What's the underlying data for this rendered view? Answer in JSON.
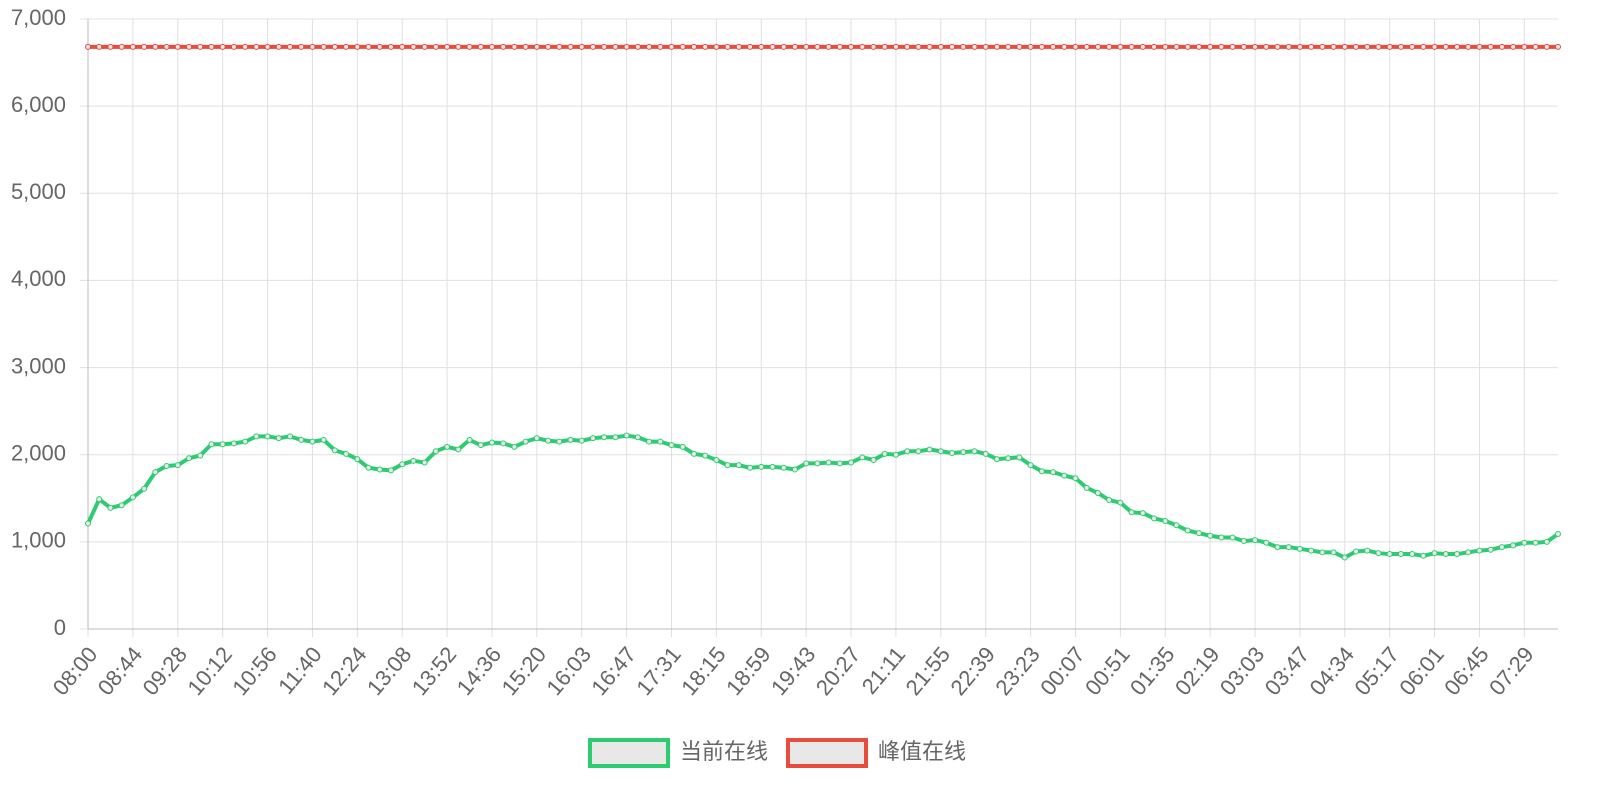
{
  "chart_data": {
    "type": "line",
    "categories": [
      "08:00",
      null,
      null,
      null,
      "08:44",
      null,
      null,
      null,
      "09:28",
      null,
      null,
      null,
      "10:12",
      null,
      null,
      null,
      "10:56",
      null,
      null,
      null,
      "11:40",
      null,
      null,
      null,
      "12:24",
      null,
      null,
      null,
      "13:08",
      null,
      null,
      null,
      "13:52",
      null,
      null,
      null,
      "14:36",
      null,
      null,
      null,
      "15:20",
      null,
      null,
      null,
      "16:03",
      null,
      null,
      null,
      "16:47",
      null,
      null,
      null,
      "17:31",
      null,
      null,
      null,
      "18:15",
      null,
      null,
      null,
      "18:59",
      null,
      null,
      null,
      "19:43",
      null,
      null,
      null,
      "20:27",
      null,
      null,
      null,
      "21:11",
      null,
      null,
      null,
      "21:55",
      null,
      null,
      null,
      "22:39",
      null,
      null,
      null,
      "23:23",
      null,
      null,
      null,
      "00:07",
      null,
      null,
      null,
      "00:51",
      null,
      null,
      null,
      "01:35",
      null,
      null,
      null,
      "02:19",
      null,
      null,
      null,
      "03:03",
      null,
      null,
      null,
      "03:47",
      null,
      null,
      null,
      "04:34",
      null,
      null,
      null,
      "05:17",
      null,
      null,
      null,
      "06:01",
      null,
      null,
      null,
      "06:45",
      null,
      null,
      null,
      "07:29",
      null,
      null,
      null
    ],
    "series": [
      {
        "name": "当前在线",
        "color": "#2ecc71",
        "values": [
          1210,
          1490,
          1390,
          1420,
          1510,
          1610,
          1800,
          1870,
          1880,
          1960,
          1990,
          2120,
          2120,
          2130,
          2150,
          2210,
          2210,
          2190,
          2210,
          2170,
          2150,
          2170,
          2050,
          2010,
          1950,
          1850,
          1830,
          1820,
          1890,
          1930,
          1910,
          2040,
          2090,
          2060,
          2170,
          2110,
          2140,
          2130,
          2090,
          2150,
          2190,
          2160,
          2150,
          2170,
          2160,
          2190,
          2200,
          2200,
          2220,
          2200,
          2150,
          2150,
          2110,
          2090,
          2010,
          1990,
          1940,
          1880,
          1880,
          1850,
          1860,
          1860,
          1850,
          1830,
          1900,
          1900,
          1910,
          1900,
          1910,
          1970,
          1940,
          2010,
          2000,
          2040,
          2040,
          2060,
          2040,
          2020,
          2030,
          2040,
          2010,
          1950,
          1960,
          1970,
          1880,
          1810,
          1800,
          1760,
          1730,
          1620,
          1560,
          1480,
          1450,
          1340,
          1330,
          1270,
          1240,
          1190,
          1130,
          1100,
          1070,
          1050,
          1050,
          1010,
          1020,
          990,
          940,
          940,
          920,
          900,
          880,
          880,
          820,
          890,
          900,
          870,
          860,
          860,
          860,
          840,
          870,
          860,
          860,
          880,
          900,
          910,
          940,
          960,
          990,
          990,
          1000,
          1090
        ]
      },
      {
        "name": "峰值在线",
        "color": "#e74c3c",
        "values": [
          6680,
          6680,
          6680,
          6680,
          6680,
          6680,
          6680,
          6680,
          6680,
          6680,
          6680,
          6680,
          6680,
          6680,
          6680,
          6680,
          6680,
          6680,
          6680,
          6680,
          6680,
          6680,
          6680,
          6680,
          6680,
          6680,
          6680,
          6680,
          6680,
          6680,
          6680,
          6680,
          6680,
          6680,
          6680,
          6680,
          6680,
          6680,
          6680,
          6680,
          6680,
          6680,
          6680,
          6680,
          6680,
          6680,
          6680,
          6680,
          6680,
          6680,
          6680,
          6680,
          6680,
          6680,
          6680,
          6680,
          6680,
          6680,
          6680,
          6680,
          6680,
          6680,
          6680,
          6680,
          6680,
          6680,
          6680,
          6680,
          6680,
          6680,
          6680,
          6680,
          6680,
          6680,
          6680,
          6680,
          6680,
          6680,
          6680,
          6680,
          6680,
          6680,
          6680,
          6680,
          6680,
          6680,
          6680,
          6680,
          6680,
          6680,
          6680,
          6680,
          6680,
          6680,
          6680,
          6680,
          6680,
          6680,
          6680,
          6680,
          6680,
          6680,
          6680,
          6680,
          6680,
          6680,
          6680,
          6680,
          6680,
          6680,
          6680,
          6680,
          6680,
          6680,
          6680,
          6680,
          6680,
          6680,
          6680,
          6680,
          6680,
          6680,
          6680,
          6680,
          6680,
          6680,
          6680,
          6680,
          6680,
          6680,
          6680,
          6680
        ]
      }
    ],
    "ylim": [
      0,
      7000
    ],
    "yticks": [
      0,
      {
        "value": 1000,
        "label": "1,000"
      },
      {
        "value": 2000,
        "label": "2,000"
      },
      {
        "value": 3000,
        "label": "3,000"
      },
      {
        "value": 4000,
        "label": "4,000"
      },
      {
        "value": 5000,
        "label": "5,000"
      },
      {
        "value": 6000,
        "label": "6,000"
      },
      {
        "value": 7000,
        "label": "7,000"
      }
    ],
    "grid": true,
    "legend": "bottom"
  }
}
